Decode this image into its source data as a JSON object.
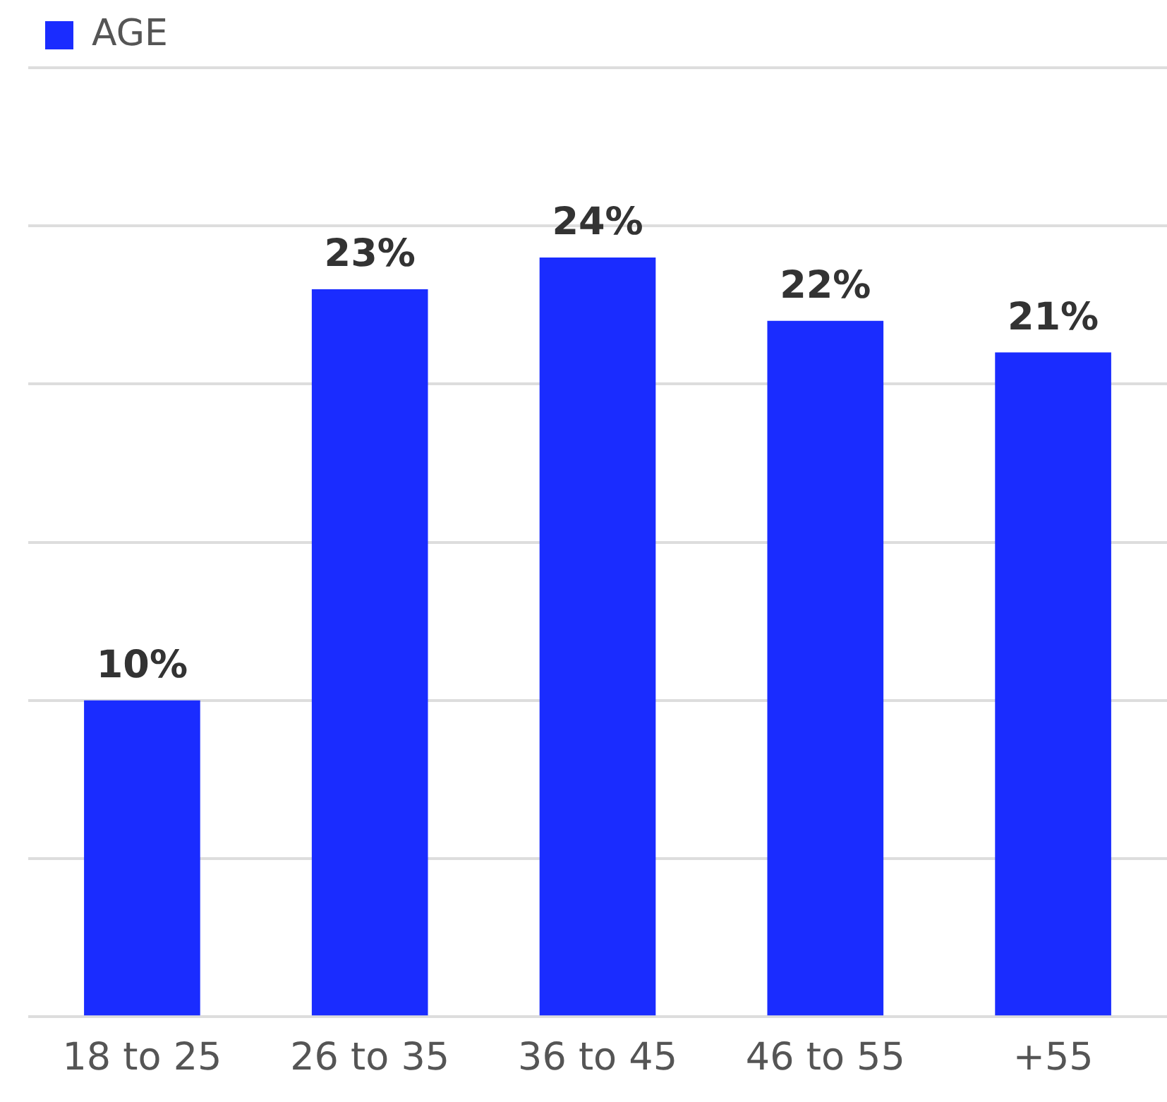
{
  "chart_data": {
    "type": "bar",
    "categories": [
      "18 to 25",
      "26 to 35",
      "36 to 45",
      "46 to 55",
      "+55"
    ],
    "series": [
      {
        "name": "AGE",
        "color": "#1a2cff",
        "values": [
          10,
          23,
          24,
          22,
          21
        ],
        "value_labels": [
          "10%",
          "23%",
          "24%",
          "22%",
          "21%"
        ]
      }
    ],
    "ylim": [
      0,
      30
    ],
    "yticks": [
      {
        "value": 0,
        "label": null
      },
      {
        "value": 5,
        "label": null
      },
      {
        "value": 10,
        "label": null
      },
      {
        "value": 15,
        "label": null
      },
      {
        "value": 20,
        "label": null
      },
      {
        "value": 25,
        "label": null
      },
      {
        "value": 30,
        "label": null
      }
    ],
    "tick_labels": "x",
    "grid": "y",
    "legend": "top left"
  }
}
